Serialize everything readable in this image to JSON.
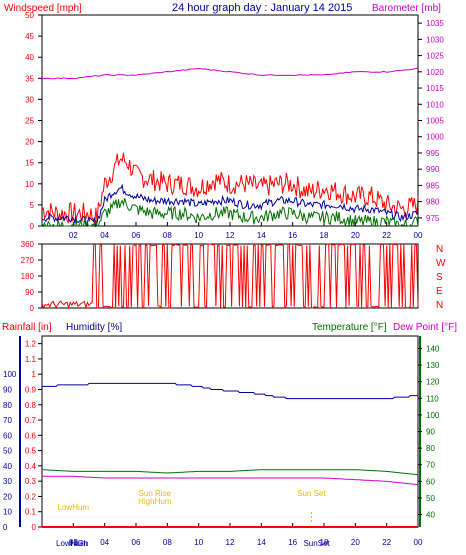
{
  "title": "24 hour graph day : January 14 2015",
  "colors": {
    "frame": "#000000",
    "windspeed": "#ff0000",
    "barometer": "#cc00cc",
    "rainfall": "#ff0000",
    "humidity": "#0000a0",
    "temperature": "#007000",
    "dewpoint": "#cc00cc",
    "annotation": "#e0c000"
  },
  "chart_data": [
    {
      "type": "line",
      "title": "24 hour graph day : January 14 2015",
      "left_label": "Windspeed [mph]",
      "right_label": "Barometer [mb]",
      "x_ticks": [
        "02",
        "04",
        "06",
        "08",
        "10",
        "12",
        "14",
        "16",
        "18",
        "20",
        "22",
        "00"
      ],
      "y_left_ticks": [
        "0",
        "5",
        "10",
        "15",
        "20",
        "25",
        "30",
        "35",
        "40",
        "45",
        "50"
      ],
      "y_left_range": [
        0,
        50
      ],
      "y_right_ticks": [
        "975",
        "980",
        "985",
        "990",
        "995",
        "1000",
        "1005",
        "1010",
        "1015",
        "1020",
        "1025",
        "1030",
        "1035"
      ],
      "y_right_range": [
        972.5,
        1037.5
      ],
      "series": [
        {
          "name": "Wind gust",
          "color": "#ff0000",
          "x": [
            0,
            1,
            2,
            3,
            3.5,
            4,
            4.5,
            5,
            5.5,
            6,
            7,
            8,
            9,
            10,
            11,
            12,
            13,
            14,
            15,
            16,
            17,
            18,
            19,
            20,
            21,
            22,
            23,
            24
          ],
          "values": [
            4,
            3,
            3,
            3,
            2,
            10,
            13,
            16,
            15,
            12,
            11,
            10,
            10,
            9,
            11,
            10,
            10,
            9,
            10,
            10,
            8,
            9,
            8,
            7,
            7,
            5,
            4,
            5
          ]
        },
        {
          "name": "Wind avg",
          "color": "#0000a0",
          "x": [
            0,
            1,
            2,
            3,
            3.5,
            4,
            4.5,
            5,
            5.5,
            6,
            7,
            8,
            9,
            10,
            11,
            12,
            13,
            14,
            15,
            16,
            17,
            18,
            19,
            20,
            21,
            22,
            23,
            24
          ],
          "values": [
            2,
            2,
            2,
            1,
            1,
            6,
            8,
            9,
            8,
            7,
            6,
            6,
            6,
            5,
            6,
            6,
            5,
            5,
            6,
            6,
            5,
            5,
            5,
            4,
            4,
            3,
            2,
            3
          ]
        },
        {
          "name": "Wind low",
          "color": "#007000",
          "x": [
            0,
            1,
            2,
            3,
            3.5,
            4,
            4.5,
            5,
            5.5,
            6,
            7,
            8,
            9,
            10,
            11,
            12,
            13,
            14,
            15,
            16,
            17,
            18,
            19,
            20,
            21,
            22,
            23,
            24
          ],
          "values": [
            0,
            0,
            0,
            0,
            0,
            3,
            4,
            6,
            5,
            4,
            3,
            3,
            3,
            2,
            3,
            3,
            2,
            2,
            3,
            3,
            2,
            2,
            2,
            1,
            1,
            1,
            0,
            1
          ]
        },
        {
          "name": "Barometer",
          "color": "#cc00cc",
          "x": [
            0,
            2,
            4,
            6,
            8,
            10,
            12,
            14,
            16,
            18,
            20,
            22,
            24
          ],
          "values": [
            1018,
            1018,
            1019,
            1019,
            1020,
            1021,
            1020,
            1019,
            1019,
            1019,
            1020,
            1020,
            1021
          ]
        }
      ]
    },
    {
      "type": "scatter",
      "y_left_ticks": [
        "0",
        "90",
        "180",
        "270",
        "360"
      ],
      "y_left_range": [
        0,
        360
      ],
      "right_labels": [
        "N",
        "W",
        "S",
        "E",
        "N"
      ],
      "series": [
        {
          "name": "Wind direction",
          "color": "#ff0000",
          "x": [
            0,
            3,
            3.5,
            4,
            5,
            6,
            8,
            10,
            12,
            14,
            16,
            18,
            20,
            22,
            24
          ],
          "values": [
            0,
            0,
            360,
            0,
            360,
            0,
            360,
            0,
            360,
            0,
            360,
            0,
            360,
            0,
            360
          ]
        }
      ]
    },
    {
      "type": "line",
      "left_label": "Rainfall [in]",
      "left_label2": "Humidity [%]",
      "right_label": "Temperature [°F]",
      "right_label2": "Dew Point [°F]",
      "x_ticks": [
        "02",
        "04",
        "06",
        "08",
        "10",
        "12",
        "14",
        "16",
        "18",
        "20",
        "22",
        "00"
      ],
      "y_left_ticks": [
        "0",
        "0.1",
        "0.2",
        "0.3",
        "0.4",
        "0.5",
        "0.6",
        "0.7",
        "0.8",
        "0.9",
        "1",
        "1.1",
        "1.2"
      ],
      "y_left_range": [
        0,
        1.25
      ],
      "y_hum_ticks": [
        "0",
        "10",
        "20",
        "30",
        "40",
        "50",
        "60",
        "70",
        "80",
        "90",
        "100"
      ],
      "y_right_ticks": [
        "40",
        "50",
        "60",
        "70",
        "80",
        "90",
        "100",
        "110",
        "120",
        "130",
        "140"
      ],
      "y_right_range": [
        32.5,
        147.5
      ],
      "series": [
        {
          "name": "Rainfall",
          "color": "#ff0000",
          "x": [
            0,
            24
          ],
          "values": [
            0,
            0
          ]
        },
        {
          "name": "Humidity",
          "color": "#0000a0",
          "x": [
            0,
            2,
            4,
            6,
            8,
            9,
            10,
            11,
            12,
            13,
            14,
            15,
            16,
            18,
            20,
            22,
            23,
            24
          ],
          "values": [
            92,
            93,
            94,
            94,
            94,
            93,
            92,
            90,
            89,
            88,
            87,
            85,
            84,
            84,
            84,
            84,
            85,
            86
          ]
        },
        {
          "name": "Temperature",
          "color": "#007000",
          "x": [
            0,
            2,
            4,
            6,
            8,
            10,
            12,
            14,
            16,
            18,
            20,
            22,
            24
          ],
          "values": [
            67,
            66,
            66,
            66,
            65,
            66,
            66,
            67,
            67,
            67,
            67,
            66,
            64
          ]
        },
        {
          "name": "Dew Point",
          "color": "#cc00cc",
          "x": [
            0,
            2,
            4,
            6,
            8,
            10,
            12,
            14,
            16,
            18,
            20,
            22,
            24
          ],
          "values": [
            63,
            63,
            62,
            62,
            62,
            62,
            62,
            62,
            62,
            62,
            61,
            60,
            58
          ]
        }
      ],
      "annotations": [
        {
          "text": "LowHum",
          "x": 2.0,
          "color": "#e0c000"
        },
        {
          "text": "Sun Rise",
          "x": 7.2,
          "color": "#e0c000"
        },
        {
          "text": "HighHum",
          "x": 7.2,
          "color": "#e0c000"
        },
        {
          "text": "Sun Set",
          "x": 17.2,
          "color": "#e0c000"
        }
      ],
      "bottom_labels": [
        "LowHum",
        "HiGh",
        "SunSet"
      ]
    }
  ]
}
